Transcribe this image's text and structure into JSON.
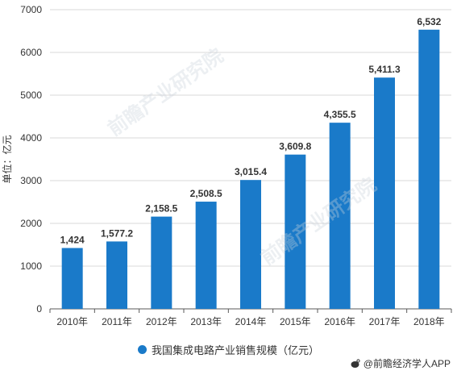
{
  "chart_data": {
    "type": "bar",
    "categories": [
      "2010年",
      "2011年",
      "2012年",
      "2013年",
      "2014年",
      "2015年",
      "2016年",
      "2017年",
      "2018年"
    ],
    "values": [
      1424,
      1577.2,
      2158.5,
      2508.5,
      3015.4,
      3609.8,
      4355.5,
      5411.3,
      6532
    ],
    "value_labels": [
      "1,424",
      "1,577.2",
      "2,158.5",
      "2,508.5",
      "3,015.4",
      "3,609.8",
      "4,355.5",
      "5,411.3",
      "6,532"
    ],
    "ylabel": "单位：亿元",
    "ylim": [
      0,
      7000
    ],
    "yticks": [
      0,
      1000,
      2000,
      3000,
      4000,
      5000,
      6000,
      7000
    ],
    "grid": true,
    "legend_position": "bottom",
    "series": [
      {
        "name": "我国集成电路产业销售规模（亿元）",
        "color": "#1a7ac9"
      }
    ]
  },
  "watermark": "前瞻产业研究院",
  "credit": "@前瞻经济学人APP",
  "colors": {
    "bar": "#1a7ac9",
    "grid": "#d9d9d9",
    "axis": "#595959"
  }
}
